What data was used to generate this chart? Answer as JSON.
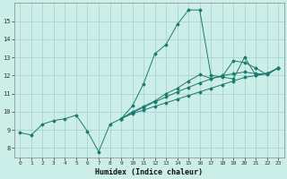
{
  "xlabel": "Humidex (Indice chaleur)",
  "bg_color": "#cceee8",
  "grid_color": "#aad4ce",
  "line_color": "#1a7a6e",
  "xlim": [
    -0.5,
    23.5
  ],
  "ylim": [
    7.5,
    16.0
  ],
  "xticks": [
    0,
    1,
    2,
    3,
    4,
    5,
    6,
    7,
    8,
    9,
    10,
    11,
    12,
    13,
    14,
    15,
    16,
    17,
    18,
    19,
    20,
    21,
    22,
    23
  ],
  "yticks": [
    8,
    9,
    10,
    11,
    12,
    13,
    14,
    15
  ],
  "lines": [
    {
      "x": [
        0,
        1,
        2,
        3,
        4,
        5,
        6,
        7,
        8,
        9,
        10,
        11,
        12,
        13,
        14,
        15,
        16,
        17,
        18,
        19,
        20,
        21,
        22,
        23
      ],
      "y": [
        8.85,
        8.72,
        9.32,
        9.52,
        9.62,
        9.82,
        8.92,
        7.8,
        9.32,
        9.62,
        10.32,
        11.55,
        13.2,
        13.72,
        14.82,
        15.62,
        15.62,
        12.02,
        11.92,
        11.82,
        13.02,
        12.02,
        12.12,
        12.42
      ]
    },
    {
      "x": [
        9,
        10,
        11,
        12,
        13,
        14,
        15,
        16,
        17,
        18,
        19,
        20,
        21,
        22,
        23
      ],
      "y": [
        9.62,
        9.9,
        10.1,
        10.3,
        10.5,
        10.7,
        10.9,
        11.1,
        11.3,
        11.5,
        11.7,
        11.9,
        12.0,
        12.1,
        12.42
      ]
    },
    {
      "x": [
        9,
        10,
        11,
        12,
        13,
        14,
        15,
        16,
        17,
        18,
        19,
        20,
        21,
        22,
        23
      ],
      "y": [
        9.62,
        9.95,
        10.25,
        10.55,
        10.82,
        11.1,
        11.35,
        11.6,
        11.82,
        12.0,
        12.1,
        12.2,
        12.1,
        12.1,
        12.42
      ]
    },
    {
      "x": [
        9,
        10,
        11,
        12,
        13,
        14,
        15,
        16,
        17,
        18,
        19,
        20,
        21,
        22,
        23
      ],
      "y": [
        9.62,
        10.0,
        10.3,
        10.6,
        11.0,
        11.3,
        11.7,
        12.05,
        11.85,
        11.95,
        12.82,
        12.72,
        12.42,
        12.05,
        12.42
      ]
    }
  ]
}
